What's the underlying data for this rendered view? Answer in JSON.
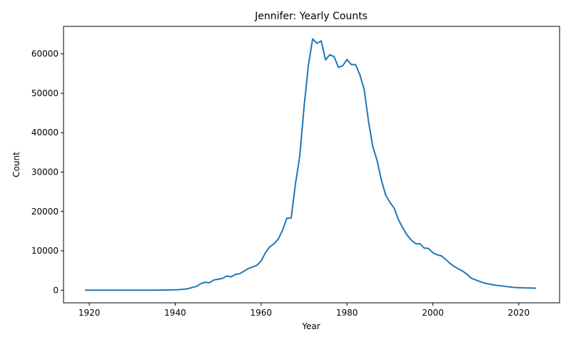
{
  "chart_data": {
    "type": "line",
    "title": "Jennifer: Yearly Counts",
    "xlabel": "Year",
    "ylabel": "Count",
    "xlim": [
      1914,
      2029.5
    ],
    "ylim": [
      -3200,
      67000
    ],
    "xticks": [
      1920,
      1940,
      1960,
      1980,
      2000,
      2020
    ],
    "yticks": [
      0,
      10000,
      20000,
      30000,
      40000,
      50000,
      60000
    ],
    "grid": false,
    "legend": "none",
    "line_color": "#1f77b4",
    "series": [
      {
        "x": [
          1919,
          1920,
          1925,
          1930,
          1935,
          1938,
          1940,
          1941,
          1942,
          1943,
          1944,
          1945,
          1946,
          1947,
          1948,
          1949,
          1950,
          1951,
          1952,
          1953,
          1954,
          1955,
          1956,
          1957,
          1958,
          1959,
          1960,
          1961,
          1962,
          1963,
          1964,
          1965,
          1966,
          1967,
          1968,
          1969,
          1970,
          1971,
          1972,
          1973,
          1974,
          1975,
          1976,
          1977,
          1978,
          1979,
          1980,
          1981,
          1982,
          1983,
          1984,
          1985,
          1986,
          1987,
          1988,
          1989,
          1990,
          1991,
          1992,
          1993,
          1994,
          1995,
          1996,
          1997,
          1998,
          1999,
          2000,
          2001,
          2002,
          2003,
          2004,
          2005,
          2006,
          2007,
          2008,
          2009,
          2010,
          2011,
          2012,
          2013,
          2014,
          2015,
          2016,
          2017,
          2018,
          2019,
          2020,
          2021,
          2022,
          2023,
          2024
        ],
        "values": [
          0,
          0,
          0,
          0,
          20,
          50,
          100,
          150,
          250,
          400,
          700,
          1000,
          1700,
          2000,
          1900,
          2600,
          2800,
          3000,
          3600,
          3400,
          4000,
          4200,
          4800,
          5500,
          5900,
          6300,
          7400,
          9500,
          11000,
          11800,
          13000,
          15200,
          18300,
          18300,
          27000,
          34000,
          46500,
          57000,
          63800,
          62700,
          63300,
          58500,
          59800,
          59300,
          56600,
          57000,
          58600,
          57300,
          57300,
          54700,
          51000,
          43000,
          36500,
          33000,
          28000,
          24200,
          22300,
          20800,
          17900,
          15800,
          14000,
          12700,
          11800,
          11800,
          10700,
          10600,
          9500,
          9000,
          8700,
          7800,
          6800,
          6000,
          5400,
          4800,
          4000,
          3000,
          2600,
          2200,
          1800,
          1600,
          1400,
          1200,
          1100,
          950,
          800,
          700,
          650,
          600,
          580,
          560,
          520
        ]
      }
    ]
  }
}
